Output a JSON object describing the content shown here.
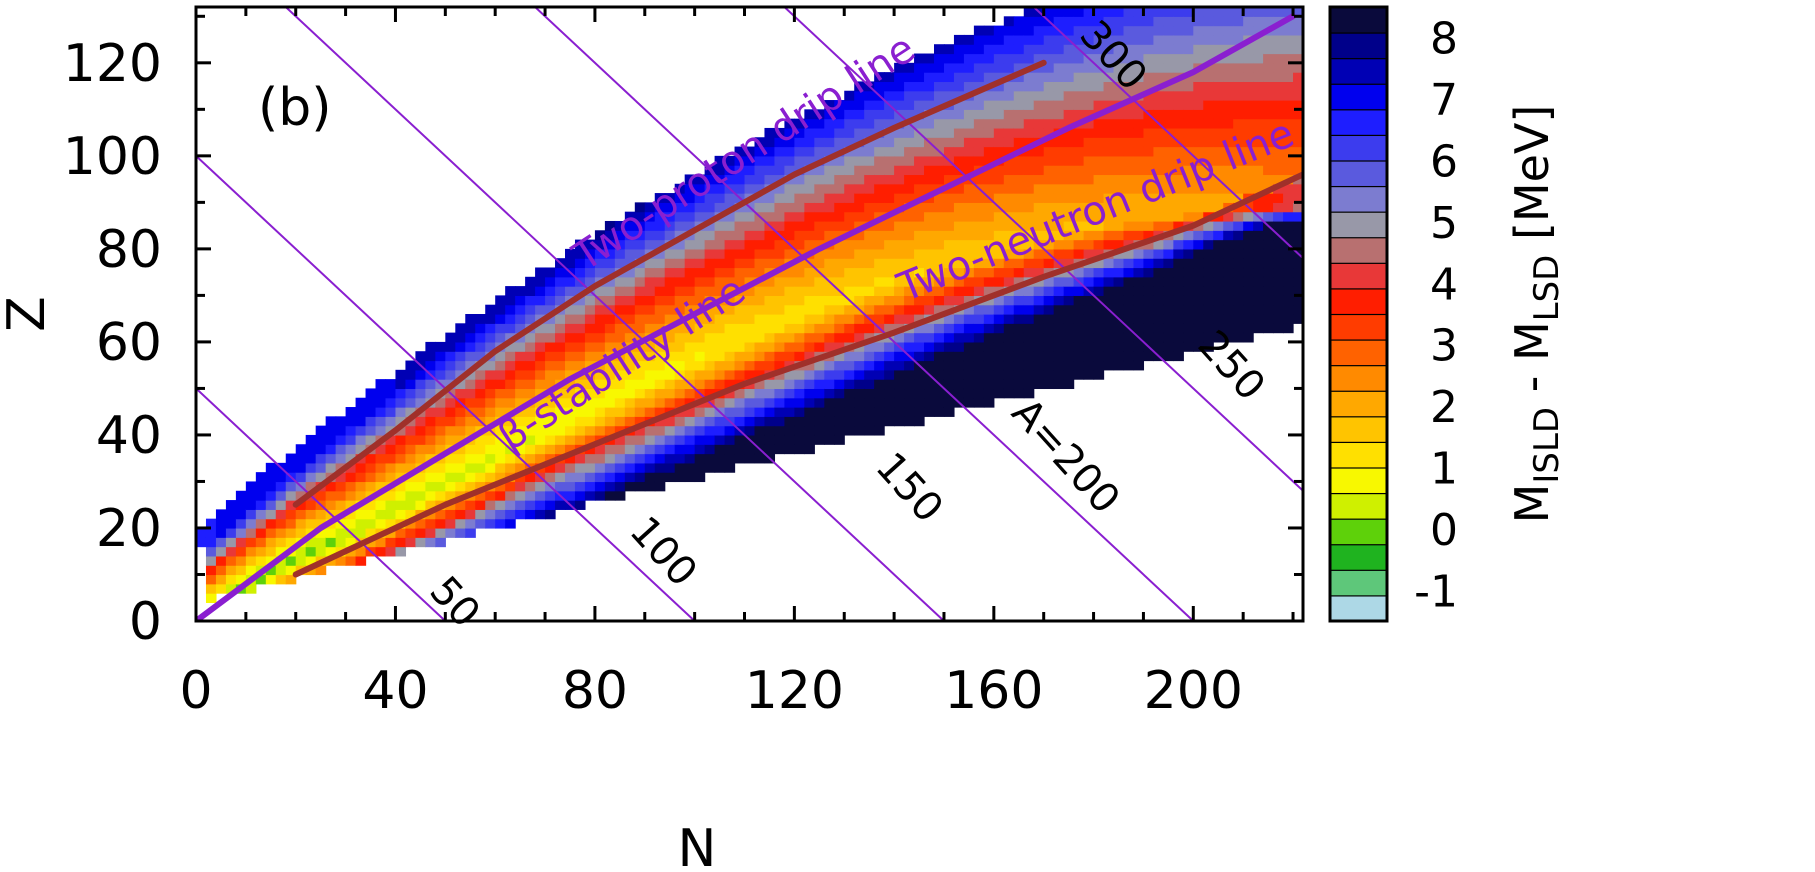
{
  "chart_data": {
    "type": "heatmap",
    "title": "",
    "panel_tag": "(b)",
    "xlabel": "N",
    "ylabel": "Z",
    "xlim": [
      0,
      222
    ],
    "ylim": [
      0,
      132
    ],
    "x_ticks": [
      "0",
      "40",
      "80",
      "120",
      "160",
      "200"
    ],
    "y_ticks": [
      "0",
      "20",
      "40",
      "60",
      "80",
      "100",
      "120"
    ],
    "colorbar": {
      "title_main": "M",
      "title_sub1": "ISLD",
      "title_mid": " - M",
      "title_sub2": "LSD",
      "title_unit": "  [MeV]",
      "range": [
        -1.5,
        8.5
      ],
      "tick_labels": [
        "-1",
        "0",
        "1",
        "2",
        "3",
        "4",
        "5",
        "6",
        "7",
        "8"
      ],
      "colors": [
        "#add8e6",
        "#5ec77a",
        "#1fb31f",
        "#5ed10a",
        "#cff000",
        "#f8f800",
        "#ffe000",
        "#ffc400",
        "#ffa800",
        "#ff8a00",
        "#ff6200",
        "#ff3c00",
        "#ff1e00",
        "#e83838",
        "#b87070",
        "#9898a8",
        "#7c7cd0",
        "#5a5ade",
        "#3c3cee",
        "#1e1eff",
        "#0000ee",
        "#0000b4",
        "#00008a",
        "#0a0a3c"
      ]
    },
    "map_extent": {
      "proton_drip_limit": "Z_max(N) ≈ 19.7 + 0.9·N − 0.0014·N²",
      "neutron_side_limit": "Z_min(N) ≈ 3 + 0.27·N",
      "max_Z_shown": 130,
      "max_N_shown": 222
    },
    "lines": {
      "beta_stability": {
        "label": "β-stability line",
        "color": "#8a1fd0",
        "points": [
          [
            0,
            0
          ],
          [
            25,
            20
          ],
          [
            50,
            36
          ],
          [
            75,
            52
          ],
          [
            100,
            66
          ],
          [
            125,
            80
          ],
          [
            150,
            93
          ],
          [
            175,
            106
          ],
          [
            200,
            118
          ],
          [
            220,
            130
          ]
        ]
      },
      "two_proton_drip": {
        "label": "Two-proton drip line",
        "color": "#a0302a",
        "points": [
          [
            20,
            25
          ],
          [
            40,
            41
          ],
          [
            60,
            58
          ],
          [
            80,
            72
          ],
          [
            100,
            84
          ],
          [
            120,
            96
          ],
          [
            140,
            106
          ],
          [
            170,
            120
          ]
        ]
      },
      "two_neutron_drip": {
        "label": "Two-neutron drip line",
        "color": "#a0302a",
        "points": [
          [
            20,
            10
          ],
          [
            50,
            25
          ],
          [
            80,
            38
          ],
          [
            110,
            51
          ],
          [
            140,
            62
          ],
          [
            170,
            74
          ],
          [
            200,
            85
          ],
          [
            222,
            96
          ]
        ]
      }
    },
    "isobars": {
      "color": "#8a1fd0",
      "A": [
        50,
        100,
        150,
        200,
        250,
        300
      ],
      "labels": [
        "50",
        "100",
        "150",
        "A=200",
        "250",
        "300"
      ]
    }
  }
}
